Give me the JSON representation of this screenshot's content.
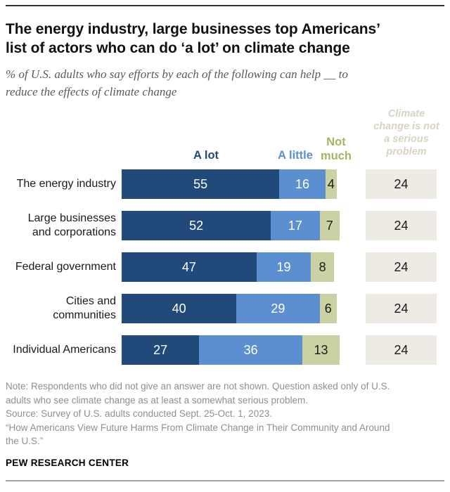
{
  "header": {
    "title_lines": [
      "The energy industry, large businesses top Americans’",
      "list of actors who can do ‘a lot’ on climate change"
    ],
    "subtitle_lines": [
      "% of U.S. adults who say efforts by each of the following can help __ to",
      "reduce the effects of climate change"
    ]
  },
  "legend": {
    "a_lot": "A lot",
    "a_little": "A little",
    "not_much_lines": [
      "Not",
      "much"
    ],
    "no_problem_lines": [
      "Climate",
      "change is not",
      "a serious",
      "problem"
    ]
  },
  "chart_data": {
    "type": "bar",
    "orientation": "horizontal-stacked",
    "title": "The energy industry, large businesses top Americans’ list of actors who can do ‘a lot’ on climate change",
    "subtitle": "% of U.S. adults who say efforts by each of the following can help __ to reduce the effects of climate change",
    "categories": [
      "The energy industry",
      "Large businesses and corporations",
      "Federal government",
      "Cities and communities",
      "Individual Americans"
    ],
    "category_label_lines": [
      [
        "The energy industry"
      ],
      [
        "Large businesses",
        "and corporations"
      ],
      [
        "Federal government"
      ],
      [
        "Cities and",
        "communities"
      ],
      [
        "Individual Americans"
      ]
    ],
    "series": [
      {
        "name": "A lot",
        "color": "#21497a",
        "text_color": "#ffffff",
        "values": [
          55,
          52,
          47,
          40,
          27
        ]
      },
      {
        "name": "A little",
        "color": "#5b8fd0",
        "text_color": "#ffffff",
        "values": [
          16,
          17,
          19,
          29,
          36
        ]
      },
      {
        "name": "Not much",
        "color": "#ccd1a3",
        "text_color": "#1a1a1a",
        "values": [
          4,
          7,
          8,
          6,
          13
        ]
      }
    ],
    "detached_series": {
      "name": "Climate change is not a serious problem",
      "color": "#eeebe5",
      "text_color": "#1a1a1a",
      "values": [
        24,
        24,
        24,
        24,
        24
      ]
    },
    "x_max": 100,
    "grid": false,
    "legend_position": "top",
    "value_labels": "inside"
  },
  "footer": {
    "note_lines": [
      "Note: Respondents who did not give an answer are not shown. Question asked only of U.S.",
      "adults who see climate change as at least a somewhat serious problem.",
      "Source: Survey of U.S. adults conducted Sept. 25-Oct. 1, 2023.",
      "“How Americans View Future Harms From Climate Change in Their Community and Around",
      "the U.S.”"
    ],
    "brand": "PEW RESEARCH CENTER"
  },
  "colors": {
    "a_lot": "#21497a",
    "a_little": "#5b8fd0",
    "not_much_bar": "#ccd1a3",
    "not_much_label": "#a9b35f",
    "no_problem_box": "#eeebe5",
    "no_problem_label": "#d9d3c1",
    "title": "#111111",
    "subtitle": "#5a5a5c",
    "note": "#8f8f8f",
    "top_rule": "#2f2f2f",
    "bottom_rule": "#a3a3a3"
  }
}
